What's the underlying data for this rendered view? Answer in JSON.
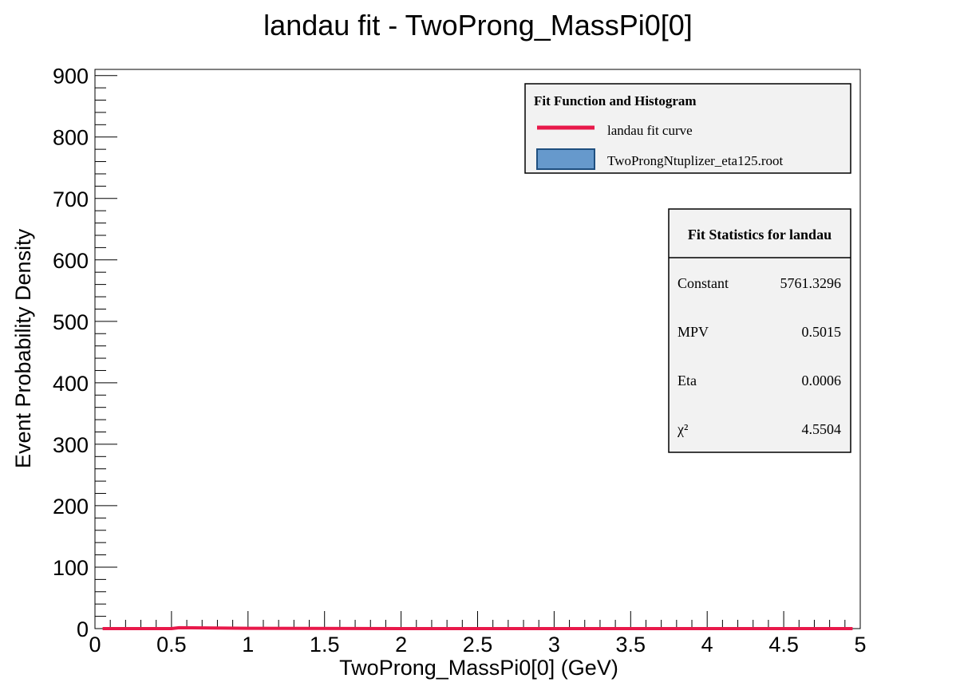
{
  "colors": {
    "background": "#ffffff",
    "axis": "#000000",
    "fit_curve": "#e8194a",
    "histogram_fill": "#6699cc",
    "histogram_edge": "#1f4f7f",
    "legend_fill": "#f2f2f2"
  },
  "chart_data": {
    "type": "line",
    "title": "landau fit - TwoProng_MassPi0[0]",
    "xlabel": "TwoProng_MassPi0[0] (GeV)",
    "ylabel": "Event Probability Density",
    "xlim": [
      0,
      5
    ],
    "ylim": [
      0,
      910
    ],
    "x_ticks": [
      0,
      0.5,
      1,
      1.5,
      2,
      2.5,
      3,
      3.5,
      4,
      4.5,
      5
    ],
    "x_tick_labels": [
      "0",
      "0.5",
      "1",
      "1.5",
      "2",
      "2.5",
      "3",
      "3.5",
      "4",
      "4.5",
      "5"
    ],
    "y_ticks": [
      0,
      100,
      200,
      300,
      400,
      500,
      600,
      700,
      800,
      900
    ],
    "y_tick_labels": [
      "0",
      "100",
      "200",
      "300",
      "400",
      "500",
      "600",
      "700",
      "800",
      "900"
    ],
    "grid": false,
    "series": [
      {
        "name": "landau fit curve",
        "style": "line",
        "x": [
          0.05,
          0.5,
          0.55,
          1.0,
          2.0,
          3.0,
          4.0,
          4.95
        ],
        "y": [
          0,
          0,
          1.5,
          0.5,
          0,
          0,
          0,
          0
        ]
      }
    ],
    "legend": {
      "position": "top-right",
      "title": "Fit Function and Histogram",
      "entries": [
        {
          "label": "landau fit curve",
          "kind": "line"
        },
        {
          "label": "TwoProngNtuplizer_eta125.root",
          "kind": "box"
        }
      ]
    },
    "stats_box": {
      "position": "right",
      "title": "Fit Statistics for landau",
      "rows": [
        {
          "name": "Constant",
          "value": "5761.3296"
        },
        {
          "name": "MPV",
          "value": "0.5015"
        },
        {
          "name": "Eta",
          "value": "0.0006"
        },
        {
          "name": "χ²",
          "value": "4.5504"
        }
      ]
    }
  }
}
